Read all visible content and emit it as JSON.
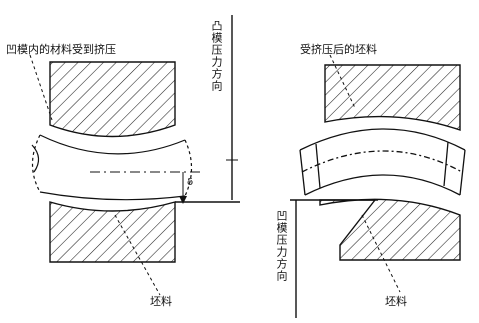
{
  "left_figure": {
    "label_top_left": "凹模内的材料受到挤压",
    "label_vertical": "凸模压力方向",
    "label_bottom": "坯料",
    "marker_symbol": "δ"
  },
  "right_figure": {
    "label_top": "受挤压后的坯料",
    "label_vertical": "凹模压力方向",
    "label_bottom": "坯料"
  },
  "colors": {
    "line": "#111111",
    "hatch": "#222222"
  }
}
